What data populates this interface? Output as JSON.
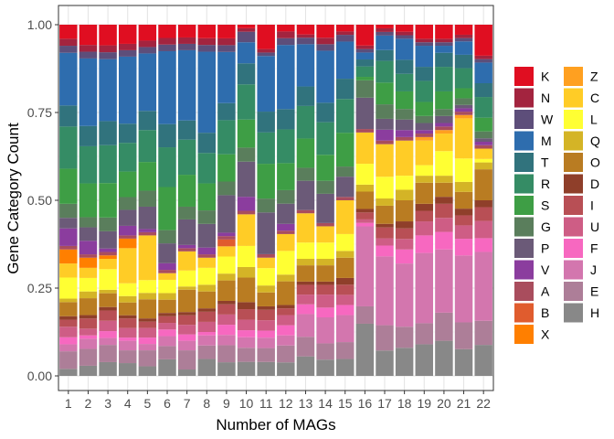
{
  "chart_data": {
    "type": "bar",
    "stacked": true,
    "xlabel": "Number of MAGs",
    "ylabel": "Gene Category Count",
    "ylim": [
      0,
      1
    ],
    "yticks": [
      0,
      0.25,
      0.5,
      0.75,
      1
    ],
    "ytick_labels": [
      "0.00",
      "0.25",
      "0.50",
      "0.75",
      "1.00"
    ],
    "grid": true,
    "legend_position": "right",
    "categories": [
      "1",
      "2",
      "3",
      "4",
      "5",
      "6",
      "7",
      "8",
      "9",
      "10",
      "11",
      "12",
      "13",
      "14",
      "15",
      "16",
      "17",
      "18",
      "19",
      "20",
      "21",
      "22"
    ],
    "series": [
      {
        "name": "H",
        "color": "#888888",
        "values": [
          0.02,
          0.03,
          0.04,
          0.04,
          0.03,
          0.05,
          0.02,
          0.05,
          0.04,
          0.04,
          0.04,
          0.04,
          0.06,
          0.05,
          0.05,
          0.15,
          0.07,
          0.08,
          0.09,
          0.1,
          0.08,
          0.09
        ]
      },
      {
        "name": "E",
        "color": "#AD7E98",
        "values": [
          0.05,
          0.05,
          0.05,
          0.04,
          0.05,
          0.04,
          0.06,
          0.04,
          0.05,
          0.04,
          0.04,
          0.05,
          0.06,
          0.05,
          0.05,
          0.05,
          0.07,
          0.06,
          0.06,
          0.08,
          0.08,
          0.07
        ]
      },
      {
        "name": "J",
        "color": "#D376AE",
        "values": [
          0.02,
          0.03,
          0.02,
          0.03,
          0.02,
          0.03,
          0.03,
          0.03,
          0.03,
          0.03,
          0.03,
          0.03,
          0.07,
          0.08,
          0.08,
          0.23,
          0.19,
          0.18,
          0.2,
          0.18,
          0.2,
          0.2
        ]
      },
      {
        "name": "F",
        "color": "#F768C0",
        "values": [
          0.02,
          0.01,
          0.02,
          0.01,
          0.02,
          0.02,
          0.02,
          0.01,
          0.03,
          0.02,
          0.02,
          0.03,
          0.03,
          0.03,
          0.03,
          0.01,
          0.03,
          0.04,
          0.05,
          0.05,
          0.05,
          0.04
        ]
      },
      {
        "name": "U",
        "color": "#CE5D85",
        "values": [
          0.03,
          0.02,
          0.03,
          0.03,
          0.03,
          0.02,
          0.03,
          0.03,
          0.03,
          0.03,
          0.03,
          0.03,
          0.03,
          0.04,
          0.03,
          0.01,
          0.02,
          0.03,
          0.04,
          0.04,
          0.04,
          0.05
        ]
      },
      {
        "name": "I",
        "color": "#B84F55",
        "values": [
          0.02,
          0.03,
          0.03,
          0.03,
          0.02,
          0.02,
          0.03,
          0.03,
          0.03,
          0.03,
          0.03,
          0.02,
          0.03,
          0.03,
          0.03,
          0.02,
          0.03,
          0.03,
          0.03,
          0.04,
          0.03,
          0.04
        ]
      },
      {
        "name": "D",
        "color": "#8F3F2A",
        "values": [
          0.01,
          0.01,
          0.01,
          0.01,
          0.01,
          0.01,
          0.01,
          0.01,
          0.01,
          0.02,
          0.01,
          0.01,
          0.01,
          0.01,
          0.02,
          0.01,
          0.01,
          0.02,
          0.02,
          0.02,
          0.02,
          0.02
        ]
      },
      {
        "name": "O",
        "color": "#B97C22",
        "values": [
          0.04,
          0.05,
          0.04,
          0.04,
          0.06,
          0.04,
          0.07,
          0.05,
          0.06,
          0.07,
          0.04,
          0.07,
          0.05,
          0.05,
          0.06,
          0.05,
          0.05,
          0.06,
          0.06,
          0.04,
          0.05,
          0.09
        ]
      },
      {
        "name": "Q",
        "color": "#D4B426",
        "values": [
          0.01,
          0.02,
          0.01,
          0.02,
          0.02,
          0.02,
          0.01,
          0.02,
          0.02,
          0.03,
          0.02,
          0.02,
          0.02,
          0.02,
          0.02,
          0.02,
          0.02,
          0.03,
          0.02,
          0.02,
          0.03,
          0.02
        ]
      },
      {
        "name": "L",
        "color": "#FFFF33",
        "values": [
          0.06,
          0.04,
          0.06,
          0.04,
          0.04,
          0.04,
          0.05,
          0.05,
          0.05,
          0.06,
          0.05,
          0.07,
          0.05,
          0.05,
          0.05,
          0.06,
          0.06,
          0.04,
          0.03,
          0.07,
          0.07,
          0.01
        ]
      },
      {
        "name": "C",
        "color": "#FFCC26",
        "values": [
          0.04,
          0.03,
          0.03,
          0.11,
          0.14,
          0.02,
          0.06,
          0.03,
          0.03,
          0.09,
          0.03,
          0.05,
          0.09,
          0.05,
          0.1,
          0.09,
          0.09,
          0.1,
          0.07,
          0.05,
          0.12,
          0.03
        ]
      },
      {
        "name": "Z",
        "color": "#FFA020",
        "values": [
          0.0,
          0.0,
          0.0,
          0.0,
          0.0,
          0.0,
          0.0,
          0.0,
          0.0,
          0.0,
          0.0,
          0.0,
          0.0,
          0.0,
          0.0,
          0.0,
          0.0,
          0.0,
          0.01,
          0.01,
          0.01,
          0.0
        ]
      },
      {
        "name": "X",
        "color": "#FF7F00",
        "values": [
          0.04,
          0.03,
          0.01,
          0.03,
          0.0,
          0.0,
          0.0,
          0.0,
          0.0,
          0.0,
          0.0,
          0.0,
          0.0,
          0.0,
          0.0,
          0.0,
          0.0,
          0.0,
          0.0,
          0.0,
          0.0,
          0.0
        ]
      },
      {
        "name": "B",
        "color": "#E05C2E",
        "values": [
          0.0,
          0.0,
          0.0,
          0.0,
          0.0,
          0.0,
          0.0,
          0.0,
          0.02,
          0.0,
          0.0,
          0.0,
          0.0,
          0.0,
          0.0,
          0.0,
          0.0,
          0.0,
          0.0,
          0.0,
          0.0,
          0.0
        ]
      },
      {
        "name": "A",
        "color": "#A94D5D",
        "values": [
          0.01,
          0.01,
          0.01,
          0.01,
          0.01,
          0.01,
          0.01,
          0.01,
          0.01,
          0.01,
          0.01,
          0.01,
          0.01,
          0.01,
          0.01,
          0.01,
          0.01,
          0.01,
          0.01,
          0.01,
          0.01,
          0.01
        ]
      },
      {
        "name": "V",
        "color": "#8B3D9E",
        "values": [
          0.05,
          0.04,
          0.01,
          0.03,
          0.01,
          0.02,
          0.01,
          0.02,
          0.01,
          0.04,
          0.0,
          0.02,
          0.0,
          0.0,
          0.0,
          0.0,
          0.03,
          0.02,
          0.01,
          0.01,
          0.01,
          0.01
        ]
      },
      {
        "name": "P",
        "color": "#6B5A78",
        "values": [
          0.03,
          0.04,
          0.05,
          0.05,
          0.07,
          0.06,
          0.08,
          0.07,
          0.11,
          0.1,
          0.12,
          0.06,
          0.09,
          0.09,
          0.06,
          0.09,
          0.03,
          0.03,
          0.02,
          0.02,
          0.01,
          0.01
        ]
      },
      {
        "name": "G",
        "color": "#5A7E5C",
        "values": [
          0.04,
          0.03,
          0.04,
          0.04,
          0.05,
          0.04,
          0.04,
          0.04,
          0.04,
          0.04,
          0.04,
          0.04,
          0.04,
          0.04,
          0.03,
          0.05,
          0.04,
          0.03,
          0.02,
          0.02,
          0.02,
          0.02
        ]
      },
      {
        "name": "S",
        "color": "#3E9E45",
        "values": [
          0.1,
          0.1,
          0.1,
          0.08,
          0.09,
          0.13,
          0.1,
          0.08,
          0.08,
          0.08,
          0.1,
          0.08,
          0.09,
          0.08,
          0.1,
          0.01,
          0.06,
          0.05,
          0.04,
          0.05,
          0.03,
          0.04
        ]
      },
      {
        "name": "R",
        "color": "#358C65",
        "values": [
          0.12,
          0.11,
          0.11,
          0.09,
          0.1,
          0.12,
          0.11,
          0.09,
          0.1,
          0.1,
          0.09,
          0.1,
          0.1,
          0.1,
          0.1,
          0.03,
          0.06,
          0.05,
          0.06,
          0.07,
          0.06,
          0.06
        ]
      },
      {
        "name": "T",
        "color": "#31737D",
        "values": [
          0.06,
          0.06,
          0.07,
          0.06,
          0.06,
          0.07,
          0.06,
          0.06,
          0.05,
          0.06,
          0.06,
          0.06,
          0.06,
          0.06,
          0.06,
          0.02,
          0.03,
          0.04,
          0.04,
          0.04,
          0.04,
          0.04
        ]
      },
      {
        "name": "M",
        "color": "#2E6DAE",
        "values": [
          0.15,
          0.2,
          0.18,
          0.21,
          0.18,
          0.22,
          0.22,
          0.24,
          0.15,
          0.06,
          0.16,
          0.19,
          0.13,
          0.16,
          0.11,
          0.02,
          0.04,
          0.06,
          0.06,
          0.02,
          0.04,
          0.06
        ]
      },
      {
        "name": "W",
        "color": "#5D4E7A",
        "values": [
          0.02,
          0.02,
          0.02,
          0.02,
          0.02,
          0.02,
          0.02,
          0.02,
          0.02,
          0.03,
          0.01,
          0.02,
          0.02,
          0.02,
          0.02,
          0.01,
          0.01,
          0.01,
          0.01,
          0.01,
          0.01,
          0.01
        ]
      },
      {
        "name": "N",
        "color": "#A3243F",
        "values": [
          0.02,
          0.02,
          0.02,
          0.02,
          0.02,
          0.02,
          0.02,
          0.02,
          0.02,
          0.01,
          0.01,
          0.02,
          0.01,
          0.02,
          0.01,
          0.01,
          0.01,
          0.01,
          0.01,
          0.01,
          0.01,
          0.01
        ]
      },
      {
        "name": "K",
        "color": "#E00E21",
        "values": [
          0.04,
          0.06,
          0.06,
          0.06,
          0.05,
          0.04,
          0.04,
          0.04,
          0.04,
          0.01,
          0.07,
          0.02,
          0.03,
          0.04,
          0.02,
          0.06,
          0.01,
          0.02,
          0.04,
          0.04,
          0.03,
          0.09
        ]
      }
    ],
    "legend_columns": [
      [
        "K",
        "N",
        "W",
        "M",
        "T",
        "R",
        "S",
        "G",
        "P",
        "V",
        "A",
        "B",
        "X"
      ],
      [
        "Z",
        "C",
        "L",
        "Q",
        "O",
        "D",
        "I",
        "U",
        "F",
        "J",
        "E",
        "H"
      ]
    ]
  }
}
